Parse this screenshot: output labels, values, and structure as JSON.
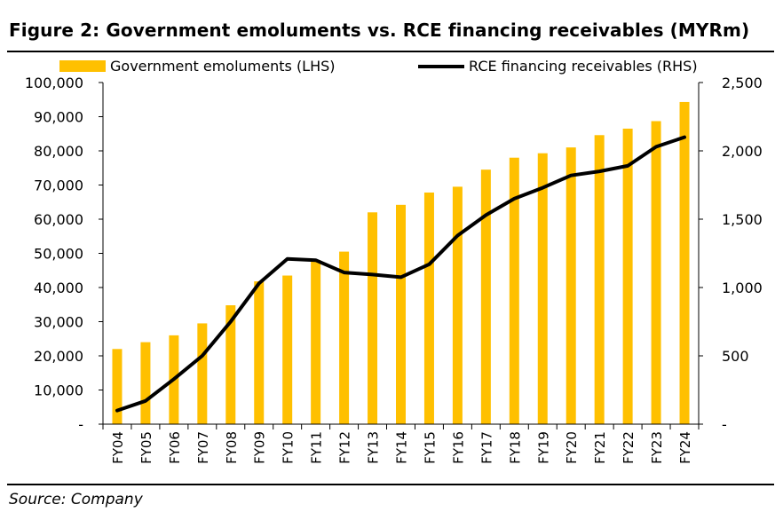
{
  "title": "Figure 2: Government emoluments vs. RCE financing receivables (MYRm)",
  "source": "Source: Company",
  "chart_data": {
    "type": "bar",
    "categories": [
      "FY04",
      "FY05",
      "FY06",
      "FY07",
      "FY08",
      "FY09",
      "FY10",
      "FY11",
      "FY12",
      "FY13",
      "FY14",
      "FY15",
      "FY16",
      "FY17",
      "FY18",
      "FY19",
      "FY20",
      "FY21",
      "FY22",
      "FY23",
      "FY24"
    ],
    "series": [
      {
        "name": "Government emoluments (LHS)",
        "type": "bar",
        "axis": "left",
        "color": "#FFC000",
        "values": [
          22000,
          24000,
          26000,
          29500,
          34800,
          41800,
          43500,
          48000,
          50500,
          62000,
          64200,
          67800,
          69500,
          74500,
          78000,
          79300,
          81000,
          84600,
          86500,
          88700,
          94300
        ]
      },
      {
        "name": "RCE financing receivables (RHS)",
        "type": "line",
        "axis": "right",
        "color": "#000000",
        "values": [
          100,
          170,
          330,
          500,
          750,
          1030,
          1210,
          1200,
          1110,
          1095,
          1075,
          1170,
          1380,
          1530,
          1650,
          1730,
          1820,
          1850,
          1890,
          2030,
          2100
        ]
      }
    ],
    "left_axis": {
      "ylim": [
        0,
        100000
      ],
      "ticks": [
        0,
        10000,
        20000,
        30000,
        40000,
        50000,
        60000,
        70000,
        80000,
        90000,
        100000
      ],
      "tick_labels": [
        "-",
        "10,000",
        "20,000",
        "30,000",
        "40,000",
        "50,000",
        "60,000",
        "70,000",
        "80,000",
        "90,000",
        "100,000"
      ]
    },
    "right_axis": {
      "ylim": [
        0,
        2500
      ],
      "ticks": [
        0,
        500,
        1000,
        1500,
        2000,
        2500
      ],
      "tick_labels": [
        "-",
        "500",
        "1,000",
        "1,500",
        "2,000",
        "2,500"
      ]
    },
    "grid": false,
    "legend_position": "top"
  }
}
